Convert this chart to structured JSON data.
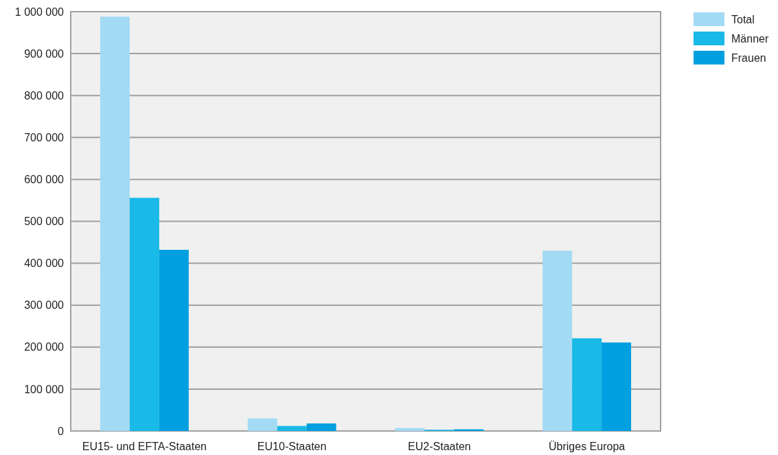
{
  "chart_data": {
    "type": "bar",
    "categories": [
      "EU15- und EFTA-Staaten",
      "EU10-Staaten",
      "EU2-Staaten",
      "Übriges Europa"
    ],
    "series": [
      {
        "name": "Total",
        "color": "#a3daf4",
        "values": [
          988000,
          30000,
          7000,
          430000
        ]
      },
      {
        "name": "Männer",
        "color": "#19b9e8",
        "values": [
          556000,
          12000,
          3000,
          221000
        ]
      },
      {
        "name": "Frauen",
        "color": "#009fe0",
        "values": [
          432000,
          18000,
          4000,
          211000
        ]
      }
    ],
    "ylim": [
      0,
      1000000
    ],
    "yticks": [
      {
        "value": 0,
        "label": "0"
      },
      {
        "value": 100000,
        "label": "100 000"
      },
      {
        "value": 200000,
        "label": "200 000"
      },
      {
        "value": 300000,
        "label": "300 000"
      },
      {
        "value": 400000,
        "label": "400 000"
      },
      {
        "value": 500000,
        "label": "500 000"
      },
      {
        "value": 600000,
        "label": "600 000"
      },
      {
        "value": 700000,
        "label": "700 000"
      },
      {
        "value": 800000,
        "label": "800 000"
      },
      {
        "value": 900000,
        "label": "900 000"
      },
      {
        "value": 1000000,
        "label": "1 000 000"
      }
    ],
    "grid": "y",
    "legend": "top right"
  }
}
